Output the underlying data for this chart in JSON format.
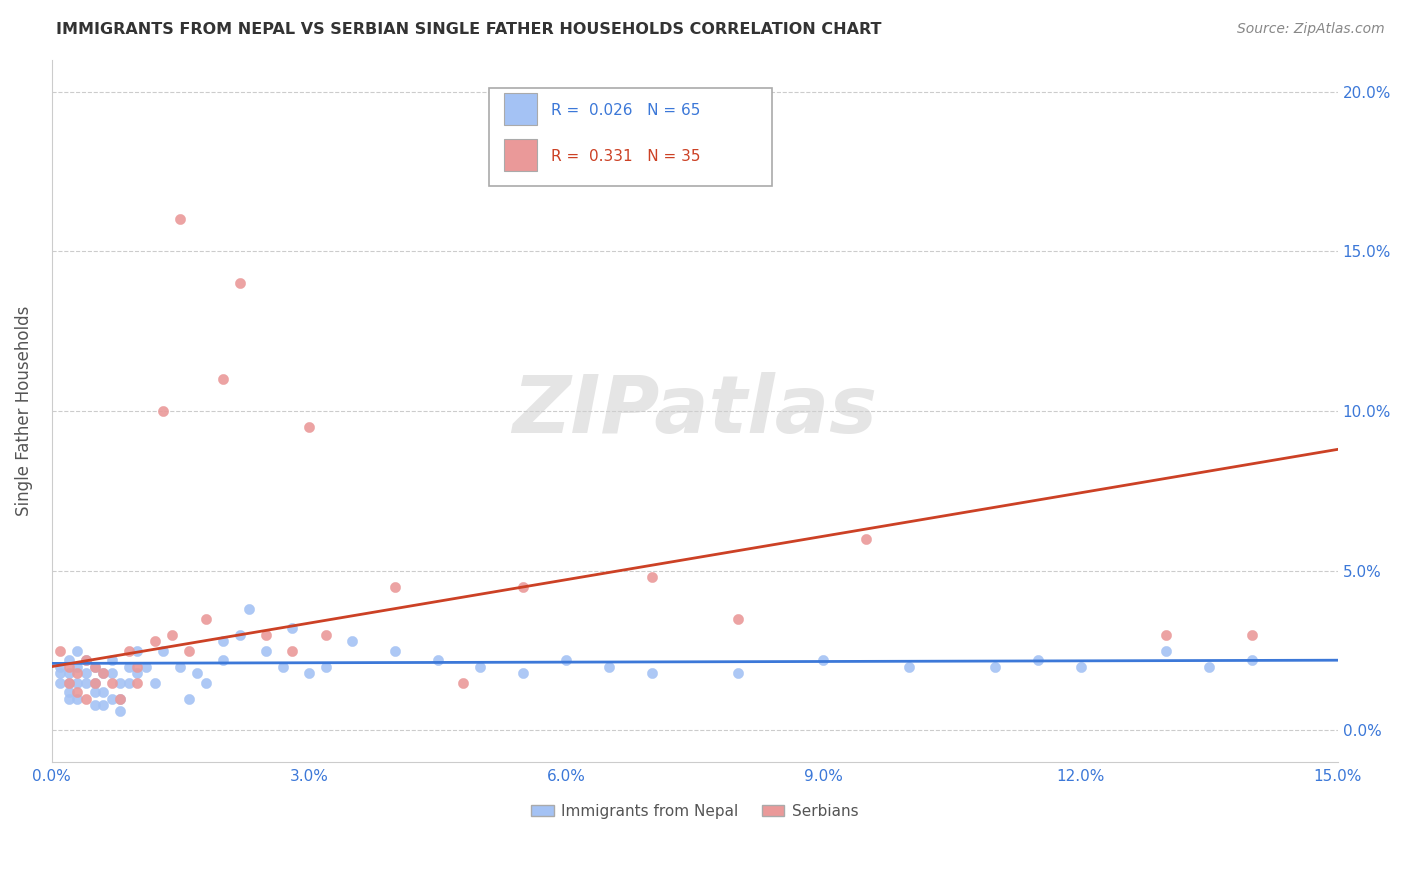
{
  "title": "IMMIGRANTS FROM NEPAL VS SERBIAN SINGLE FATHER HOUSEHOLDS CORRELATION CHART",
  "source": "Source: ZipAtlas.com",
  "ylabel": "Single Father Households",
  "legend_labels": [
    "Immigrants from Nepal",
    "Serbians"
  ],
  "nepal_R": 0.026,
  "nepal_N": 65,
  "serbian_R": 0.331,
  "serbian_N": 35,
  "nepal_color": "#a4c2f4",
  "serbian_color": "#ea9999",
  "nepal_line_color": "#3c78d8",
  "serbian_line_color": "#cc4125",
  "xlim": [
    0.0,
    0.15
  ],
  "ylim": [
    -0.01,
    0.21
  ],
  "xticks": [
    0.0,
    0.03,
    0.06,
    0.09,
    0.12,
    0.15
  ],
  "yticks": [
    0.0,
    0.05,
    0.1,
    0.15,
    0.2
  ],
  "xtick_labels": [
    "0.0%",
    "3.0%",
    "6.0%",
    "9.0%",
    "12.0%",
    "15.0%"
  ],
  "ytick_labels": [
    "0.0%",
    "5.0%",
    "10.0%",
    "15.0%",
    "20.0%"
  ],
  "watermark": "ZIPatlas",
  "nepal_x": [
    0.001,
    0.001,
    0.001,
    0.002,
    0.002,
    0.002,
    0.002,
    0.002,
    0.003,
    0.003,
    0.003,
    0.003,
    0.004,
    0.004,
    0.004,
    0.005,
    0.005,
    0.005,
    0.005,
    0.006,
    0.006,
    0.006,
    0.007,
    0.007,
    0.007,
    0.008,
    0.008,
    0.008,
    0.009,
    0.009,
    0.01,
    0.01,
    0.011,
    0.012,
    0.013,
    0.015,
    0.016,
    0.017,
    0.018,
    0.02,
    0.02,
    0.022,
    0.023,
    0.025,
    0.027,
    0.028,
    0.03,
    0.032,
    0.035,
    0.04,
    0.045,
    0.05,
    0.055,
    0.06,
    0.065,
    0.07,
    0.08,
    0.09,
    0.1,
    0.11,
    0.115,
    0.12,
    0.13,
    0.135,
    0.14
  ],
  "nepal_y": [
    0.02,
    0.018,
    0.015,
    0.022,
    0.018,
    0.015,
    0.012,
    0.01,
    0.025,
    0.02,
    0.015,
    0.01,
    0.022,
    0.018,
    0.015,
    0.02,
    0.015,
    0.012,
    0.008,
    0.018,
    0.012,
    0.008,
    0.022,
    0.018,
    0.01,
    0.015,
    0.01,
    0.006,
    0.02,
    0.015,
    0.025,
    0.018,
    0.02,
    0.015,
    0.025,
    0.02,
    0.01,
    0.018,
    0.015,
    0.028,
    0.022,
    0.03,
    0.038,
    0.025,
    0.02,
    0.032,
    0.018,
    0.02,
    0.028,
    0.025,
    0.022,
    0.02,
    0.018,
    0.022,
    0.02,
    0.018,
    0.018,
    0.022,
    0.02,
    0.02,
    0.022,
    0.02,
    0.025,
    0.02,
    0.022
  ],
  "serbian_x": [
    0.001,
    0.002,
    0.002,
    0.003,
    0.003,
    0.004,
    0.004,
    0.005,
    0.005,
    0.006,
    0.007,
    0.008,
    0.009,
    0.01,
    0.01,
    0.012,
    0.013,
    0.014,
    0.015,
    0.016,
    0.018,
    0.02,
    0.022,
    0.025,
    0.028,
    0.03,
    0.032,
    0.04,
    0.048,
    0.055,
    0.07,
    0.08,
    0.095,
    0.13,
    0.14
  ],
  "serbian_y": [
    0.025,
    0.02,
    0.015,
    0.018,
    0.012,
    0.022,
    0.01,
    0.02,
    0.015,
    0.018,
    0.015,
    0.01,
    0.025,
    0.02,
    0.015,
    0.028,
    0.1,
    0.03,
    0.16,
    0.025,
    0.035,
    0.11,
    0.14,
    0.03,
    0.025,
    0.095,
    0.03,
    0.045,
    0.015,
    0.045,
    0.048,
    0.035,
    0.06,
    0.03,
    0.03
  ],
  "nepal_trendline": [
    0.0,
    0.15,
    0.021,
    0.022
  ],
  "serbian_trendline": [
    0.0,
    0.15,
    0.02,
    0.088
  ]
}
